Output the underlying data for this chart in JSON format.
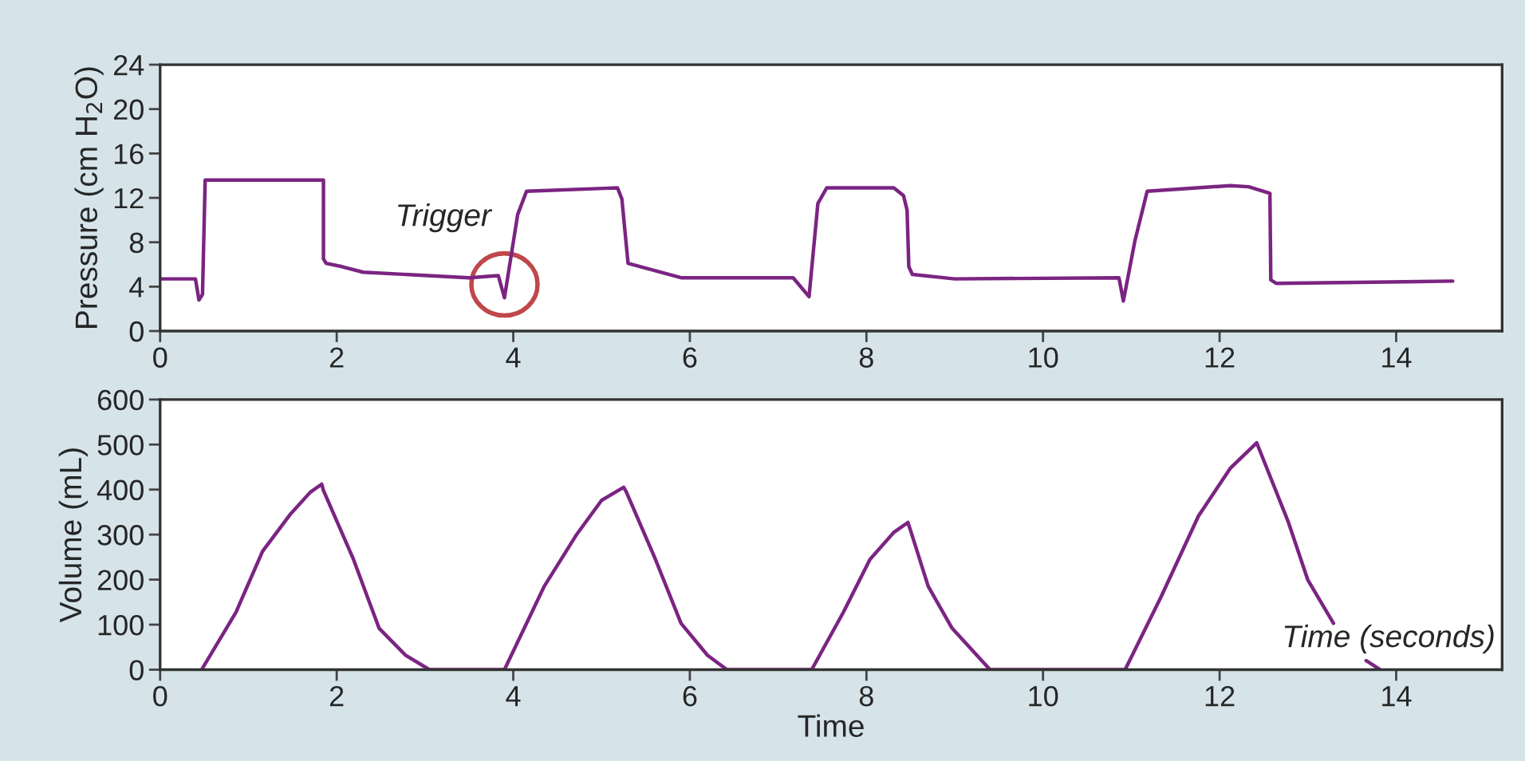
{
  "chart_data": [
    {
      "type": "line",
      "ylabel": "Pressure (cm H$_{2}$O)",
      "xlim": [
        0,
        15.2
      ],
      "ylim": [
        0,
        24
      ],
      "xticks": [
        0,
        2,
        4,
        6,
        8,
        10,
        12,
        14
      ],
      "yticks": [
        0,
        4,
        8,
        12,
        16,
        20,
        24
      ],
      "grid": false,
      "legend": false,
      "annotations": [
        {
          "text": "Trigger",
          "x": 3.9,
          "y": 3.0
        }
      ],
      "series": [
        {
          "color": "#7b2482",
          "x": [
            0,
            0.4,
            0.44,
            0.48,
            0.51,
            1.85,
            1.85,
            1.88,
            2.06,
            2.3,
            3.5,
            3.83,
            3.9,
            4.05,
            4.15,
            5.18,
            5.23,
            5.3,
            5.9,
            7.17,
            7.35,
            7.45,
            7.55,
            8.31,
            8.42,
            8.46,
            8.48,
            8.52,
            9.0,
            10.86,
            10.91,
            11.04,
            11.18,
            12.12,
            12.33,
            12.57,
            12.58,
            12.64,
            14.64
          ],
          "values": [
            4.7,
            4.7,
            2.8,
            3.3,
            13.6,
            13.6,
            6.5,
            6.1,
            5.8,
            5.3,
            4.8,
            5.0,
            3.0,
            10.5,
            12.6,
            12.9,
            11.9,
            6.1,
            4.8,
            4.8,
            3.1,
            11.5,
            12.9,
            12.9,
            12.2,
            10.9,
            5.8,
            5.1,
            4.7,
            4.8,
            2.7,
            8.1,
            12.6,
            13.1,
            13.0,
            12.4,
            4.6,
            4.3,
            4.5
          ]
        }
      ]
    },
    {
      "type": "line",
      "xlabel": "Time",
      "ylabel": "Volume (mL)",
      "xlim": [
        0,
        15.2
      ],
      "ylim": [
        0,
        600
      ],
      "xticks": [
        0,
        2,
        4,
        6,
        8,
        10,
        12,
        14
      ],
      "yticks": [
        0,
        100,
        200,
        300,
        400,
        500,
        600
      ],
      "grid": false,
      "legend": false,
      "annotations": [
        "Time (seconds)"
      ],
      "series": [
        {
          "color": "#7b2482",
          "x": [
            0.47,
            0.86,
            1.16,
            1.47,
            1.7,
            1.83,
            1.85,
            2.19,
            2.48,
            2.78,
            3.05,
            3.9,
            4.35,
            4.71,
            5.0,
            5.25,
            5.28,
            5.61,
            5.9,
            6.2,
            6.42,
            7.38,
            7.74,
            8.04,
            8.31,
            8.47,
            8.5,
            8.7,
            8.97,
            9.4,
            10.93,
            11.34,
            11.76,
            12.12,
            12.42,
            12.78,
            13.0,
            13.29,
            13.45,
            13.66,
            13.82
          ],
          "values": [
            0,
            128,
            263,
            344,
            394,
            412,
            398,
            245,
            92,
            32,
            0,
            0,
            185,
            298,
            376,
            405,
            395,
            245,
            103,
            32,
            0,
            0,
            128,
            245,
            305,
            327,
            309,
            185,
            92,
            0,
            0,
            163,
            341,
            447,
            504,
            327,
            199,
            103,
            null,
            20,
            0
          ]
        }
      ]
    }
  ]
}
